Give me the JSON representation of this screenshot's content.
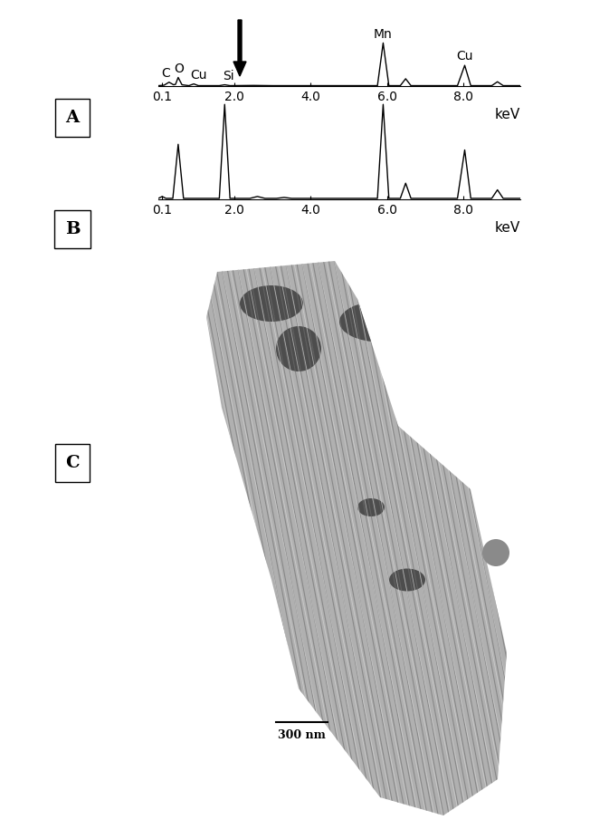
{
  "panel_labels": [
    "A",
    "B",
    "C"
  ],
  "chart_data": [
    {
      "type": "line",
      "x": [
        0,
        0.15,
        0.28,
        0.4,
        0.45,
        0.52,
        0.62,
        0.8,
        0.93,
        1.05,
        1.6,
        1.74,
        1.88,
        2.5,
        3.0,
        4.0,
        5.0,
        5.75,
        5.9,
        6.05,
        6.35,
        6.49,
        6.63,
        7.85,
        8.04,
        8.2,
        8.75,
        8.9,
        9.05,
        9.5
      ],
      "values": [
        1,
        2,
        9,
        3,
        4,
        20,
        3,
        1,
        5,
        1,
        1,
        3,
        1,
        1.5,
        1,
        1,
        1,
        1,
        100,
        1,
        1,
        17,
        1,
        1,
        48,
        1,
        1,
        10,
        1,
        1
      ],
      "color": "#000000",
      "xlim": [
        0,
        9.5
      ],
      "ylim": [
        0,
        105
      ],
      "xticks": [
        0.1,
        2.0,
        4.0,
        6.0,
        8.0
      ],
      "xlabel": "keV",
      "tick_labels": "x",
      "annotations": [
        {
          "text": "C",
          "x": 0.2,
          "y": 9
        },
        {
          "text": "O",
          "x": 0.55,
          "y": 20
        },
        {
          "text": "Cu",
          "x": 1.05,
          "y": 5
        },
        {
          "text": "Si",
          "x": 1.85,
          "y": 3
        },
        {
          "text": "Mn",
          "x": 5.9,
          "y": 100
        },
        {
          "text": "Cu",
          "x": 8.04,
          "y": 48
        }
      ]
    },
    {
      "type": "line",
      "x": [
        0,
        0.1,
        0.2,
        0.38,
        0.52,
        0.66,
        1.0,
        1.6,
        1.74,
        1.88,
        2.4,
        2.6,
        2.8,
        3.1,
        3.3,
        3.5,
        4.5,
        5.75,
        5.9,
        6.05,
        6.35,
        6.49,
        6.63,
        7.85,
        8.04,
        8.2,
        8.75,
        8.9,
        9.05,
        9.5
      ],
      "values": [
        1,
        3,
        1,
        1,
        58,
        1,
        1,
        1,
        100,
        1,
        1,
        3,
        1,
        1,
        2,
        1,
        1,
        1,
        100,
        1,
        1,
        17,
        1,
        1,
        52,
        1,
        1,
        10,
        1,
        1
      ],
      "color": "#000000",
      "xlim": [
        0,
        9.5
      ],
      "ylim": [
        0,
        105
      ],
      "xticks": [
        0.1,
        2.0,
        4.0,
        6.0,
        8.0
      ],
      "xlabel": "keV",
      "tick_labels": "x"
    }
  ],
  "image": {
    "scale_bar": "300 nm"
  }
}
